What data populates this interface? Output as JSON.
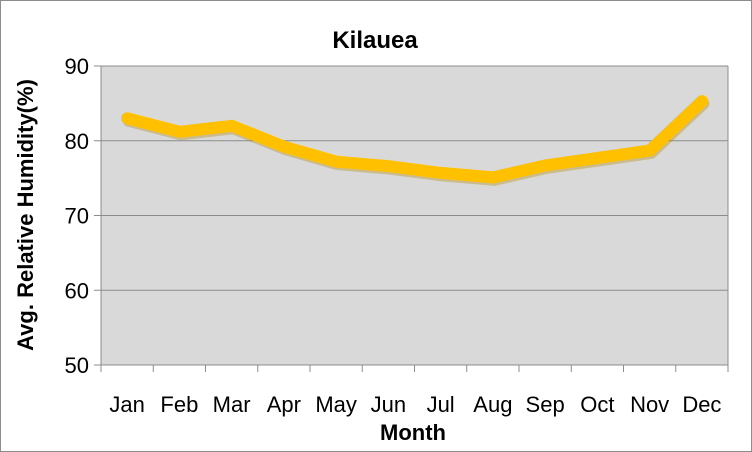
{
  "chart_data": {
    "type": "line",
    "title": "Kilauea",
    "xlabel": "Month",
    "ylabel": "Avg. Relative Humidity(%)",
    "categories": [
      "Jan",
      "Feb",
      "Mar",
      "Apr",
      "May",
      "Jun",
      "Jul",
      "Aug",
      "Sep",
      "Oct",
      "Nov",
      "Dec"
    ],
    "series": [
      {
        "values": [
          83,
          81.2,
          82,
          79.2,
          77.2,
          76.6,
          75.7,
          75.1,
          76.7,
          77.7,
          78.7,
          85.3
        ]
      }
    ],
    "ylim": [
      50,
      90
    ],
    "yticks": [
      "50",
      "60",
      "70",
      "80",
      "90"
    ],
    "grid": true,
    "legend": "none",
    "colors": {
      "line": "#FFC000",
      "plot_bg": "#D9D9D9",
      "grid": "#8C8C8C",
      "border": "#8C8C8C"
    }
  }
}
